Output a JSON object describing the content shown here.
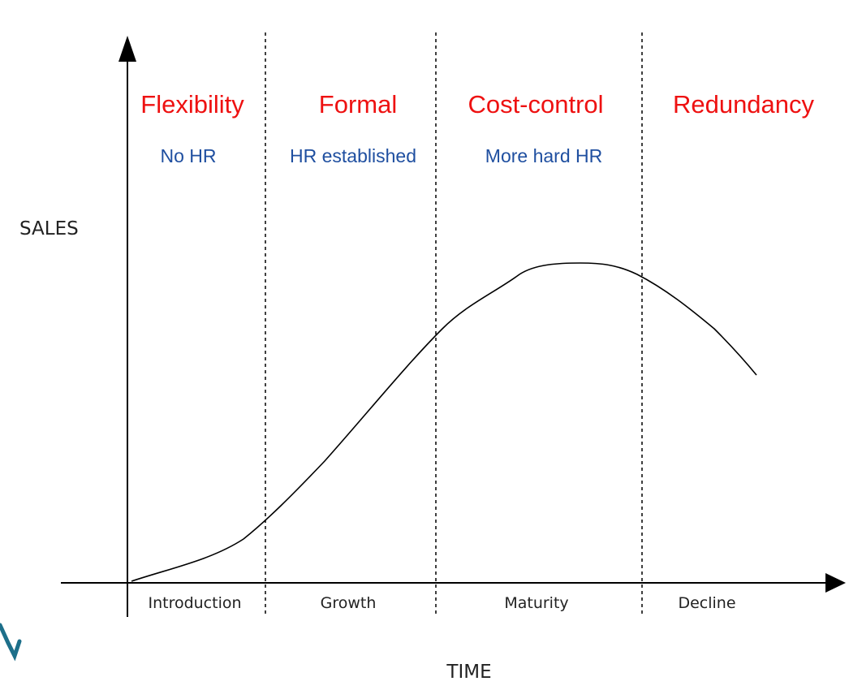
{
  "colors": {
    "title": "#ee1111",
    "subtitle": "#1f4fa0",
    "axis": "#000000",
    "curve": "#000000",
    "divider": "#000000",
    "logo": "#1d6f8a"
  },
  "y_axis_label": "SALES",
  "x_axis_label": "TIME",
  "phases": [
    {
      "title": "Flexibility",
      "hr": "No HR",
      "stage": "Introduction"
    },
    {
      "title": "Formal",
      "hr": "HR established",
      "stage": "Growth"
    },
    {
      "title": "Cost-control",
      "hr": "More hard HR",
      "stage": "Maturity"
    },
    {
      "title": "Redundancy",
      "hr": "",
      "stage": "Decline"
    }
  ],
  "logo": {
    "icon": "partial-logo-icon"
  }
}
